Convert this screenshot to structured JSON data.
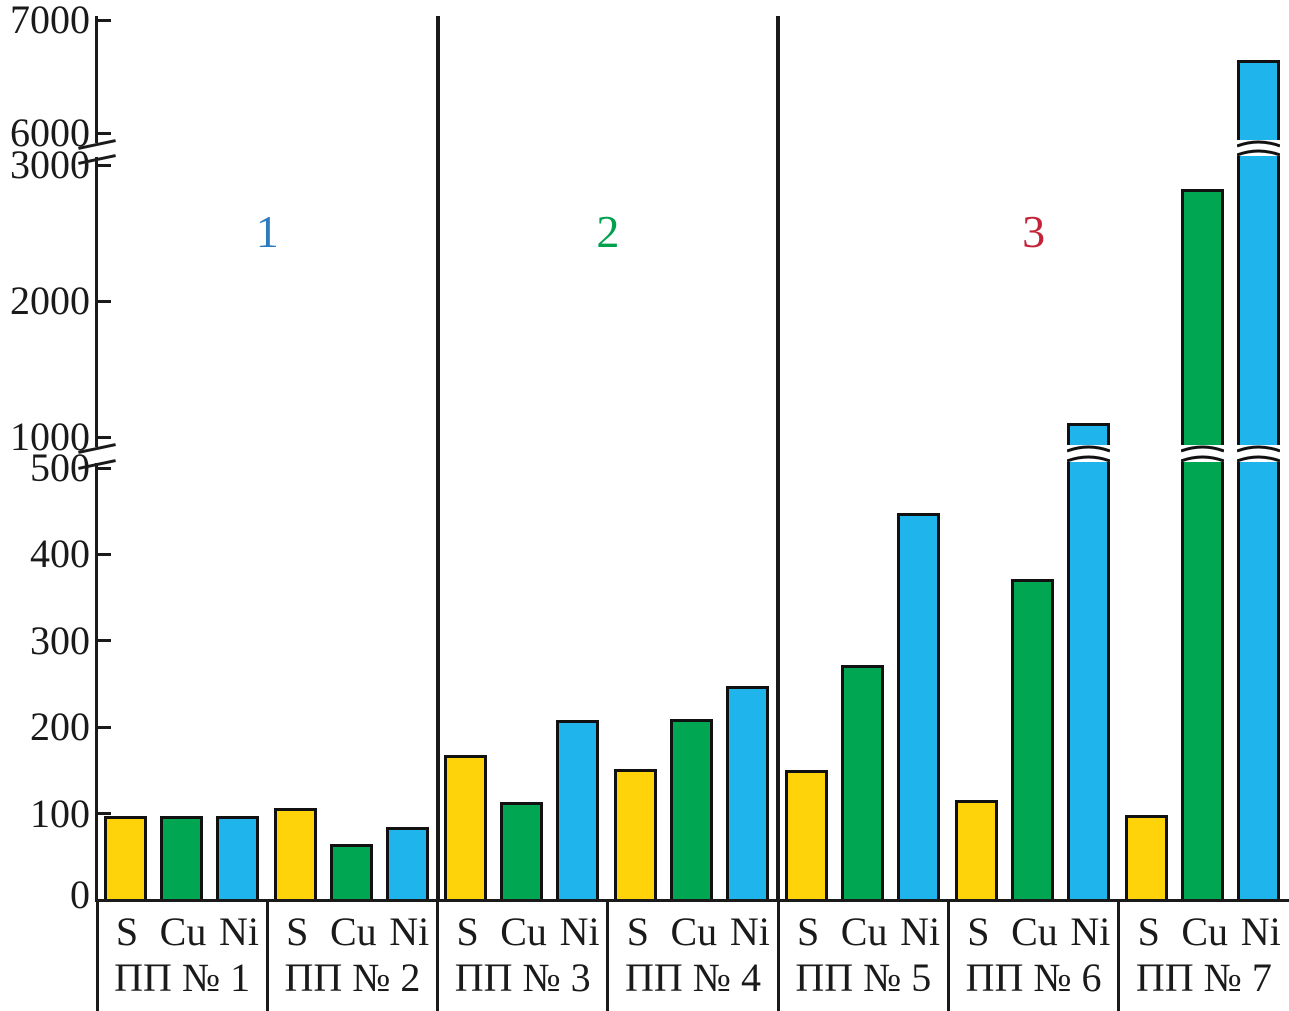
{
  "chart_data": {
    "type": "bar",
    "title": "",
    "xlabel": "",
    "ylabel": "",
    "grid": false,
    "legend_position": "none",
    "y_axis": {
      "tick_labels": [
        "0",
        "100",
        "200",
        "300",
        "400",
        "500",
        "1000",
        "2000",
        "3000",
        "6000",
        "7000"
      ],
      "tick_values": [
        0,
        100,
        200,
        300,
        400,
        500,
        1000,
        2000,
        3000,
        6000,
        7000
      ],
      "broken_axis": true,
      "axis_breaks": [
        [
          500,
          1000
        ],
        [
          3000,
          6000
        ]
      ]
    },
    "categories": [
      "ПП № 1",
      "ПП № 2",
      "ПП № 3",
      "ПП № 4",
      "ПП № 5",
      "ПП № 6",
      "ПП № 7"
    ],
    "series_letters": [
      "S",
      "Cu",
      "Ni"
    ],
    "series": [
      {
        "name": "S",
        "color": "#FFD30A",
        "values": [
          97,
          107,
          168,
          152,
          150,
          116,
          98
        ]
      },
      {
        "name": "Cu",
        "color": "#00A651",
        "values": [
          97,
          65,
          113,
          210,
          272,
          372,
          2820
        ]
      },
      {
        "name": "Ni",
        "color": "#1FB4EC",
        "values": [
          97,
          85,
          208,
          248,
          448,
          1100,
          6650
        ]
      }
    ],
    "zones": [
      {
        "label": "1",
        "color": "#2B7BBE",
        "group_span": [
          0,
          1
        ]
      },
      {
        "label": "2",
        "color": "#00A14E",
        "group_span": [
          2,
          3
        ]
      },
      {
        "label": "3",
        "color": "#C42238",
        "group_span": [
          4,
          6
        ]
      }
    ],
    "bar_outline_color": "#111111",
    "axis_color": "#1a1a1a"
  }
}
